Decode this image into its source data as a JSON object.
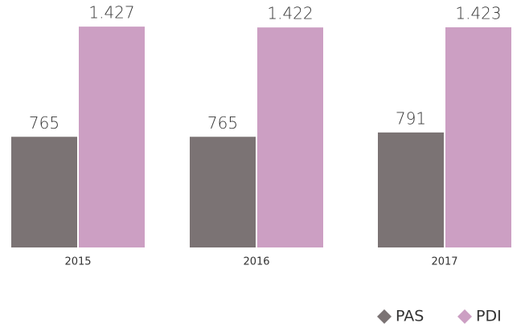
{
  "chart_data": {
    "type": "bar",
    "categories": [
      "2015",
      "2016",
      "2017"
    ],
    "series": [
      {
        "name": "PAS",
        "color": "#7b7374",
        "values": [
          765,
          765,
          791
        ]
      },
      {
        "name": "PDI",
        "color": "#cc9fc3",
        "values": [
          1427,
          1422,
          1423
        ],
        "value_labels": [
          "1.427",
          "1.422",
          "1.423"
        ]
      }
    ],
    "ylim": [
      100,
      1500
    ],
    "legend": "bottom-right"
  }
}
